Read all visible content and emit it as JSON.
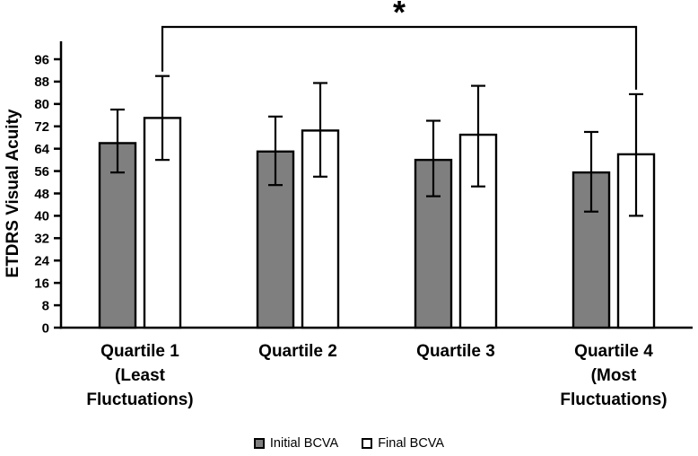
{
  "chart_data": {
    "type": "bar",
    "title": "",
    "xlabel": "",
    "ylabel": "ETDRS Visual Acuity",
    "ylim": [
      0,
      96
    ],
    "ytick_step": 8,
    "grid": false,
    "legend_position": "bottom-center",
    "categories": [
      "Quartile 1\n(Least\nFluctuations)",
      "Quartile 2",
      "Quartile 3",
      "Quartile 4\n(Most\nFluctuations)"
    ],
    "series": [
      {
        "name": "Initial BCVA",
        "color": "#7f7f7f",
        "values": [
          66,
          63,
          60,
          55.5
        ],
        "err_up": [
          12,
          12.5,
          14,
          14.5
        ],
        "err_down": [
          10.5,
          12,
          13,
          14
        ]
      },
      {
        "name": "Final BCVA",
        "color": "#ffffff",
        "values": [
          75,
          70.5,
          69,
          62
        ],
        "err_up": [
          15,
          17,
          17.5,
          21.5
        ],
        "err_down": [
          15,
          16.5,
          18.5,
          22
        ]
      }
    ],
    "significance": {
      "label": "*",
      "series": 1,
      "from_group": 0,
      "to_group": 3
    }
  }
}
